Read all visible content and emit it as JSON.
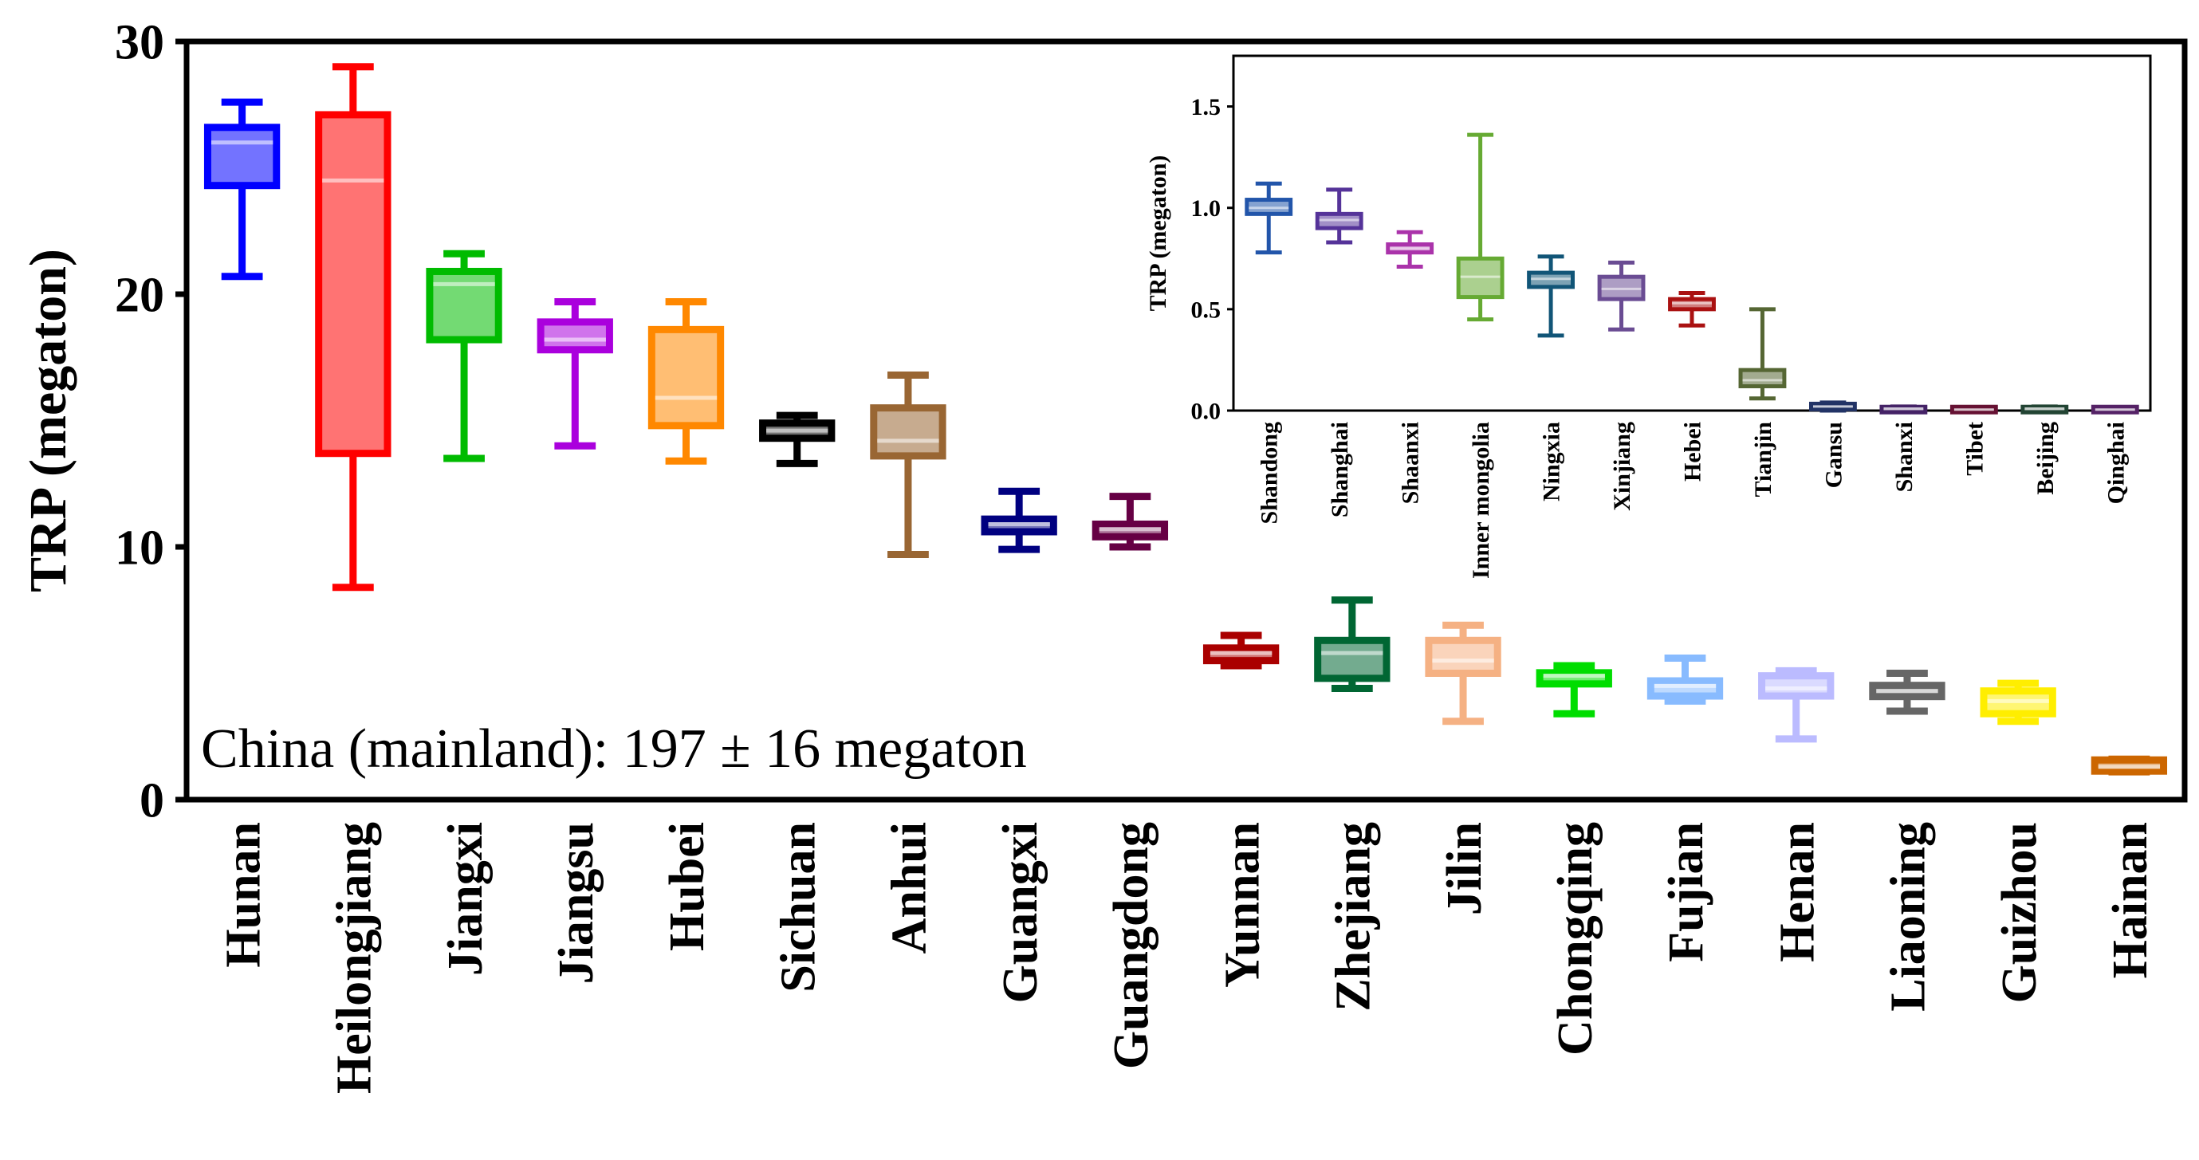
{
  "chart_data": [
    {
      "type": "box",
      "ylabel": "TRP (megaton)",
      "ylim": [
        0,
        30
      ],
      "yticks": [
        0,
        10,
        20,
        30
      ],
      "annotation": "China (mainland):  197 ± 16 megaton",
      "grid": false,
      "categories": [
        "Hunan",
        "Heilongjiang",
        "Jiangxi",
        "Jiangsu",
        "Hubei",
        "Sichuan",
        "Anhui",
        "Guangxi",
        "Guangdong",
        "Yunnan",
        "Zhejiang",
        "Jilin",
        "Chongqing",
        "Fujian",
        "Henan",
        "Liaoning",
        "Guizhou",
        "Hainan"
      ],
      "boxes": [
        {
          "name": "Hunan",
          "min": 20.7,
          "q1": 24.3,
          "median": 26.0,
          "q3": 26.6,
          "max": 27.6,
          "color": "#0000ff"
        },
        {
          "name": "Heilongjiang",
          "min": 8.4,
          "q1": 13.7,
          "median": 24.5,
          "q3": 27.1,
          "max": 29.0,
          "color": "#ff0000"
        },
        {
          "name": "Jiangxi",
          "min": 13.5,
          "q1": 18.2,
          "median": 20.4,
          "q3": 20.9,
          "max": 21.6,
          "color": "#00bb00"
        },
        {
          "name": "Jiangsu",
          "min": 14.0,
          "q1": 17.8,
          "median": 18.2,
          "q3": 18.9,
          "max": 19.7,
          "color": "#aa00dd"
        },
        {
          "name": "Hubei",
          "min": 13.4,
          "q1": 14.8,
          "median": 15.9,
          "q3": 18.6,
          "max": 19.7,
          "color": "#ff8800"
        },
        {
          "name": "Sichuan",
          "min": 13.3,
          "q1": 14.3,
          "median": 14.6,
          "q3": 14.9,
          "max": 15.2,
          "color": "#000000"
        },
        {
          "name": "Anhui",
          "min": 9.7,
          "q1": 13.6,
          "median": 14.2,
          "q3": 15.5,
          "max": 16.8,
          "color": "#996633"
        },
        {
          "name": "Guangxi",
          "min": 9.9,
          "q1": 10.6,
          "median": 10.9,
          "q3": 11.1,
          "max": 12.2,
          "color": "#000080"
        },
        {
          "name": "Guangdong",
          "min": 10.0,
          "q1": 10.4,
          "median": 10.7,
          "q3": 10.9,
          "max": 12.0,
          "color": "#660044"
        },
        {
          "name": "Yunnan",
          "min": 5.3,
          "q1": 5.5,
          "median": 5.8,
          "q3": 6.0,
          "max": 6.5,
          "color": "#aa0000"
        },
        {
          "name": "Zhejiang",
          "min": 4.4,
          "q1": 4.8,
          "median": 5.8,
          "q3": 6.3,
          "max": 7.9,
          "color": "#006633"
        },
        {
          "name": "Jilin",
          "min": 3.1,
          "q1": 5.0,
          "median": 5.5,
          "q3": 6.3,
          "max": 6.9,
          "color": "#f5b183"
        },
        {
          "name": "Chongqing",
          "min": 3.4,
          "q1": 4.6,
          "median": 4.9,
          "q3": 5.0,
          "max": 5.3,
          "color": "#00dd00"
        },
        {
          "name": "Fujian",
          "min": 3.9,
          "q1": 4.1,
          "median": 4.5,
          "q3": 4.7,
          "max": 5.6,
          "color": "#88bbff"
        },
        {
          "name": "Henan",
          "min": 2.4,
          "q1": 4.1,
          "median": 4.4,
          "q3": 4.9,
          "max": 5.1,
          "color": "#bbbbff"
        },
        {
          "name": "Liaoning",
          "min": 3.5,
          "q1": 4.1,
          "median": 4.3,
          "q3": 4.5,
          "max": 5.0,
          "color": "#666666"
        },
        {
          "name": "Guizhou",
          "min": 3.1,
          "q1": 3.4,
          "median": 3.9,
          "q3": 4.3,
          "max": 4.6,
          "color": "#ffee00"
        },
        {
          "name": "Hainan",
          "min": 1.1,
          "q1": 1.2,
          "median": 1.3,
          "q3": 1.5,
          "max": 1.6,
          "color": "#cc6600"
        }
      ]
    },
    {
      "type": "box",
      "ylabel": "TRP (megaton)",
      "ylim": [
        0,
        1.75
      ],
      "yticks": [
        0.0,
        0.5,
        1.0,
        1.5
      ],
      "ytick_labels": [
        "0.0",
        "0.5",
        "1.0",
        "1.5"
      ],
      "grid": false,
      "categories": [
        "Shandong",
        "Shanghai",
        "Shaanxi",
        "Inner mongolia",
        "Ningxia",
        "Xinjiang",
        "Hebei",
        "Tianjin",
        "Gansu",
        "Shanxi",
        "Tibet",
        "Beijing",
        "Qinghai"
      ],
      "boxes": [
        {
          "name": "Shandong",
          "min": 0.78,
          "q1": 0.97,
          "median": 1.0,
          "q3": 1.04,
          "max": 1.12,
          "color": "#2255aa"
        },
        {
          "name": "Shanghai",
          "min": 0.83,
          "q1": 0.9,
          "median": 0.94,
          "q3": 0.97,
          "max": 1.09,
          "color": "#553399"
        },
        {
          "name": "Shaanxi",
          "min": 0.71,
          "q1": 0.78,
          "median": 0.8,
          "q3": 0.82,
          "max": 0.88,
          "color": "#aa33aa"
        },
        {
          "name": "Inner mongolia",
          "min": 0.45,
          "q1": 0.56,
          "median": 0.66,
          "q3": 0.75,
          "max": 1.36,
          "color": "#66aa33"
        },
        {
          "name": "Ningxia",
          "min": 0.37,
          "q1": 0.61,
          "median": 0.65,
          "q3": 0.68,
          "max": 0.76,
          "color": "#115577"
        },
        {
          "name": "Xinjiang",
          "min": 0.4,
          "q1": 0.55,
          "median": 0.6,
          "q3": 0.66,
          "max": 0.73,
          "color": "#6a4c93"
        },
        {
          "name": "Hebei",
          "min": 0.42,
          "q1": 0.5,
          "median": 0.53,
          "q3": 0.55,
          "max": 0.58,
          "color": "#aa1111"
        },
        {
          "name": "Tianjin",
          "min": 0.06,
          "q1": 0.12,
          "median": 0.15,
          "q3": 0.2,
          "max": 0.5,
          "color": "#556633"
        },
        {
          "name": "Gansu",
          "min": 0.0,
          "q1": 0.01,
          "median": 0.02,
          "q3": 0.03,
          "max": 0.04,
          "color": "#223366"
        },
        {
          "name": "Shanxi",
          "min": 0.0,
          "q1": 0.0,
          "median": 0.01,
          "q3": 0.01,
          "max": 0.02,
          "color": "#442266"
        },
        {
          "name": "Tibet",
          "min": 0.0,
          "q1": 0.0,
          "median": 0.005,
          "q3": 0.01,
          "max": 0.015,
          "color": "#661133"
        },
        {
          "name": "Beijing",
          "min": 0.0,
          "q1": 0.0,
          "median": 0.01,
          "q3": 0.01,
          "max": 0.02,
          "color": "#224433"
        },
        {
          "name": "Qinghai",
          "min": 0.0,
          "q1": 0.0,
          "median": 0.005,
          "q3": 0.01,
          "max": 0.015,
          "color": "#552266"
        }
      ]
    }
  ]
}
